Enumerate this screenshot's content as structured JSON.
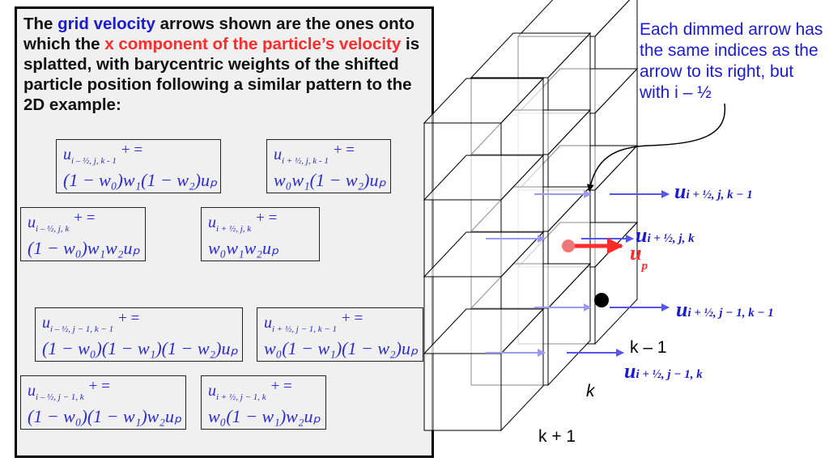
{
  "intro": {
    "t1": "The ",
    "t2": "grid velocity",
    "t3": " arrows shown are the ones onto which the ",
    "t4": "x component of the particle’s velocity",
    "t5": " is splatted, with barycentric weights of the shifted particle position following a similar pattern to the 2D example:"
  },
  "formulas": [
    {
      "id": "f1",
      "sym": "u",
      "sub": "i – ½, j, k - 1",
      "op": "+ =",
      "expr": "(1 − w₀)w₁(1 − w₂)uₚ"
    },
    {
      "id": "f2",
      "sym": "u",
      "sub": "i + ½, j, k - 1",
      "op": "+ =",
      "expr": "w₀w₁(1 − w₂)uₚ"
    },
    {
      "id": "f3",
      "sym": "u",
      "sub": "i – ½, j, k",
      "op": "+ =",
      "expr": "(1 − w₀)w₁w₂uₚ"
    },
    {
      "id": "f4",
      "sym": "u",
      "sub": "i + ½, j, k",
      "op": "+ =",
      "expr": "w₀w₁w₂uₚ"
    },
    {
      "id": "f5",
      "sym": "u",
      "sub": "i – ½, j − 1, k − 1",
      "op": "+ =",
      "expr": "(1 − w₀)(1 − w₁)(1 − w₂)uₚ"
    },
    {
      "id": "f6",
      "sym": "u",
      "sub": "i + ½, j − 1, k − 1",
      "op": "+ =",
      "expr": "w₀(1 − w₁)(1 − w₂)uₚ"
    },
    {
      "id": "f7",
      "sym": "u",
      "sub": "i – ½, j − 1, k",
      "op": "+ =",
      "expr": "(1 − w₀)(1 − w₁)w₂uₚ"
    },
    {
      "id": "f8",
      "sym": "u",
      "sub": "i + ½, j − 1, k",
      "op": "+ =",
      "expr": "w₀(1 − w₁)w₂uₚ"
    }
  ],
  "note": "Each dimmed arrow has the same indices as the arrow to its right, but with i – ½",
  "labels": {
    "u_ijk1": {
      "sym": "u",
      "sub": "i + ½, j, k − 1"
    },
    "u_ijk": {
      "sym": "u",
      "sub": "i + ½, j, k"
    },
    "u_p": {
      "sym": "u",
      "sub": "p"
    },
    "u_ij1k1": {
      "sym": "u",
      "sub": "i + ½, j − 1, k − 1"
    },
    "u_ij1k": {
      "sym": "u",
      "sub": "i + ½, j − 1, k"
    },
    "k_minus_1": "k – 1",
    "k": "k",
    "k_plus_1": "k + 1"
  },
  "colors": {
    "blue": "#1a1ad6",
    "arrow": "#5555ee",
    "dim_arrow": "#9a9af2",
    "red": "#ff2a2a",
    "particle": "#ee7777"
  }
}
